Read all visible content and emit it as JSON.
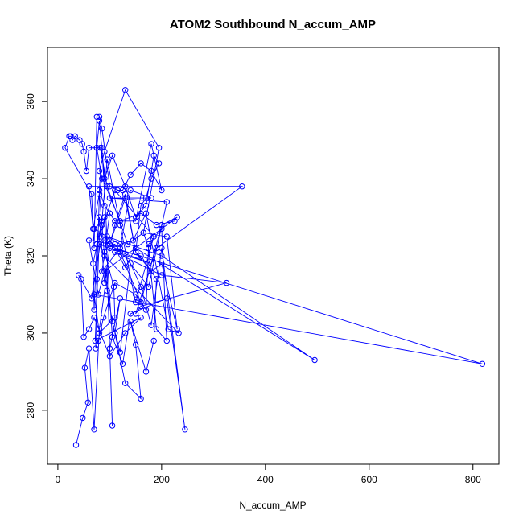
{
  "chart_data": {
    "type": "scatter",
    "title": "ATOM2 Southbound N_accum_AMP",
    "xlabel": "N_accum_AMP",
    "ylabel": "Theta (K)",
    "xlim": [
      -20,
      850
    ],
    "ylim": [
      266,
      374
    ],
    "xticks": [
      0,
      200,
      400,
      600,
      800
    ],
    "yticks": [
      280,
      300,
      320,
      340,
      360
    ],
    "grid": false,
    "series": [
      {
        "color": "#0000ff",
        "marker": "open-circle",
        "line": true,
        "x": [
          35,
          48,
          58,
          52,
          60,
          70,
          80,
          95,
          105,
          100,
          120,
          110,
          130,
          160,
          150,
          140,
          170,
          185,
          190,
          160,
          100,
          90,
          80,
          75,
          70,
          68,
          85,
          95,
          120,
          150,
          185,
          110,
          80,
          72,
          160,
          130,
          100,
          70,
          60,
          50,
          45,
          40,
          65,
          90,
          105,
          125,
          140,
          210,
          245,
          200,
          180,
          160,
          140,
          120,
          105,
          95,
          85,
          80,
          75,
          73,
          78,
          88,
          110,
          150,
          170,
          175,
          200,
          210,
          190,
          175,
          165,
          210,
          230,
          200,
          180,
          150,
          130,
          100,
          90,
          120,
          160,
          200,
          230,
          90,
          78,
          60,
          110,
          175,
          210,
          100,
          180,
          140,
          120,
          85,
          95,
          200,
          495,
          150,
          130,
          110,
          818,
          70,
          80,
          110,
          108,
          90,
          100,
          70,
          120,
          145,
          170,
          213,
          233,
          90,
          80,
          180,
          110,
          200,
          325,
          160,
          150,
          190,
          355,
          60,
          68,
          85,
          75,
          80,
          90,
          105,
          130,
          150,
          170,
          185,
          195,
          180,
          170,
          160,
          150,
          130,
          110,
          100,
          95,
          85,
          80,
          90,
          100,
          110,
          150,
          180,
          200,
          180,
          160,
          140,
          125,
          115,
          100,
          85,
          80,
          75,
          70,
          65,
          14,
          22,
          25,
          28,
          33,
          42,
          47,
          50,
          55,
          60,
          75,
          82,
          95,
          135,
          165,
          195,
          130,
          90,
          80,
          120,
          160,
          190,
          225
        ],
        "y": [
          271,
          278,
          282,
          291,
          296,
          275,
          301,
          316,
          276,
          296,
          309,
          300,
          287,
          283,
          297,
          303,
          290,
          298,
          314,
          320,
          322,
          313,
          330,
          323,
          306,
          318,
          329,
          345,
          328,
          308,
          325,
          337,
          325,
          298,
          304,
          300,
          294,
          304,
          301,
          299,
          314,
          315,
          309,
          330,
          299,
          292,
          305,
          309,
          275,
          322,
          302,
          312,
          318,
          295,
          303,
          311,
          328,
          336,
          314,
          296,
          298,
          304,
          313,
          310,
          306,
          323,
          327,
          298,
          301,
          322,
          326,
          325,
          301,
          318,
          316,
          321,
          335,
          323,
          324,
          321,
          308,
          328,
          330,
          316,
          310,
          324,
          323,
          312,
          334,
          335,
          335,
          337,
          322,
          316,
          325,
          320,
          293,
          322,
          317,
          322,
          292,
          310,
          300,
          304,
          312,
          321,
          331,
          327,
          323,
          324,
          331,
          301,
          300,
          320,
          323,
          318,
          321,
          315,
          313,
          307,
          305,
          322,
          338,
          338,
          327,
          340,
          348,
          355,
          340,
          346,
          338,
          330,
          333,
          346,
          344,
          340,
          335,
          333,
          321,
          336,
          328,
          323,
          324,
          348,
          337,
          333,
          331,
          329,
          329,
          349,
          337,
          342,
          344,
          341,
          337,
          337,
          338,
          353,
          356,
          356,
          322,
          336,
          348,
          351,
          351,
          350,
          351,
          350,
          349,
          347,
          342,
          348,
          348,
          348,
          338,
          323,
          326,
          348,
          363,
          347,
          342,
          329,
          331,
          328,
          329
        ]
      }
    ]
  }
}
